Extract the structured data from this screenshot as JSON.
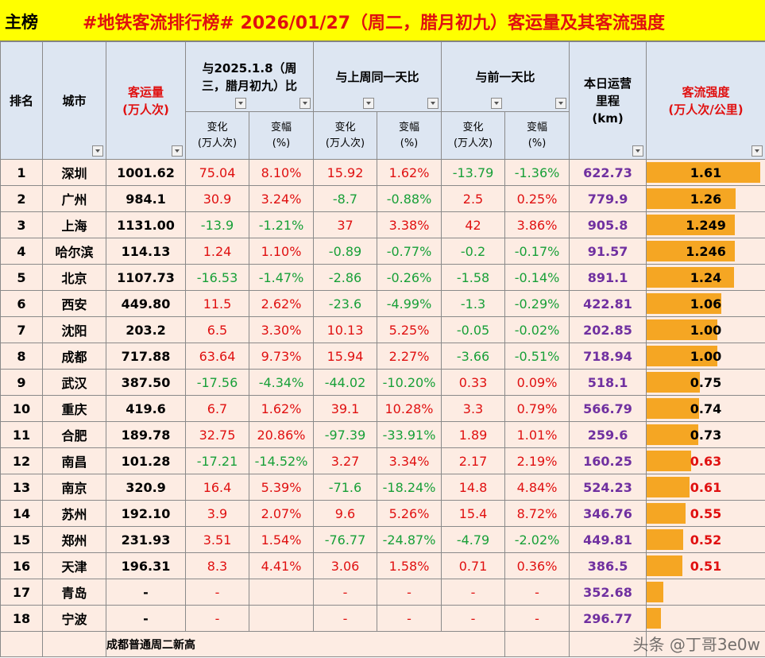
{
  "header": {
    "label": "主榜",
    "title": "#地铁客流排行榜# 2026/01/27（周二，腊月初九）客运量及其客流强度"
  },
  "columns": {
    "rank": "排名",
    "city": "城市",
    "passengers": "客运量\n(万人次)",
    "vs_lastyear": "与2025.1.8（周三，腊月初九）比",
    "vs_lastweek": "与上周同一天比",
    "vs_prevday": "与前一天比",
    "change": "变化\n(万人次)",
    "pct": "变幅\n(%)",
    "mileage": "本日运营\n里程\n(km)",
    "intensity": "客流强度\n(万人次/公里)"
  },
  "rows": [
    {
      "rank": "1",
      "city": "深圳",
      "passengers": "1001.62",
      "ly_chg": "75.04",
      "ly_pct": "8.10%",
      "lw_chg": "15.92",
      "lw_pct": "1.62%",
      "pd_chg": "-13.79",
      "pd_pct": "-1.36%",
      "mileage": "622.73",
      "intensity": "1.61",
      "level": 1.61
    },
    {
      "rank": "2",
      "city": "广州",
      "passengers": "984.1",
      "ly_chg": "30.9",
      "ly_pct": "3.24%",
      "lw_chg": "-8.7",
      "lw_pct": "-0.88%",
      "pd_chg": "2.5",
      "pd_pct": "0.25%",
      "mileage": "779.9",
      "intensity": "1.26",
      "level": 1.26
    },
    {
      "rank": "3",
      "city": "上海",
      "passengers": "1131.00",
      "ly_chg": "-13.9",
      "ly_pct": "-1.21%",
      "lw_chg": "37",
      "lw_pct": "3.38%",
      "pd_chg": "42",
      "pd_pct": "3.86%",
      "mileage": "905.8",
      "intensity": "1.249",
      "level": 1.249
    },
    {
      "rank": "4",
      "city": "哈尔滨",
      "passengers": "114.13",
      "ly_chg": "1.24",
      "ly_pct": "1.10%",
      "lw_chg": "-0.89",
      "lw_pct": "-0.77%",
      "pd_chg": "-0.2",
      "pd_pct": "-0.17%",
      "mileage": "91.57",
      "intensity": "1.246",
      "level": 1.246
    },
    {
      "rank": "5",
      "city": "北京",
      "passengers": "1107.73",
      "ly_chg": "-16.53",
      "ly_pct": "-1.47%",
      "lw_chg": "-2.86",
      "lw_pct": "-0.26%",
      "pd_chg": "-1.58",
      "pd_pct": "-0.14%",
      "mileage": "891.1",
      "intensity": "1.24",
      "level": 1.24
    },
    {
      "rank": "6",
      "city": "西安",
      "passengers": "449.80",
      "ly_chg": "11.5",
      "ly_pct": "2.62%",
      "lw_chg": "-23.6",
      "lw_pct": "-4.99%",
      "pd_chg": "-1.3",
      "pd_pct": "-0.29%",
      "mileage": "422.81",
      "intensity": "1.06",
      "level": 1.06
    },
    {
      "rank": "7",
      "city": "沈阳",
      "passengers": "203.2",
      "ly_chg": "6.5",
      "ly_pct": "3.30%",
      "lw_chg": "10.13",
      "lw_pct": "5.25%",
      "pd_chg": "-0.05",
      "pd_pct": "-0.02%",
      "mileage": "202.85",
      "intensity": "1.00",
      "level": 1.0
    },
    {
      "rank": "8",
      "city": "成都",
      "passengers": "717.88",
      "ly_chg": "63.64",
      "ly_pct": "9.73%",
      "lw_chg": "15.94",
      "lw_pct": "2.27%",
      "pd_chg": "-3.66",
      "pd_pct": "-0.51%",
      "mileage": "718.94",
      "intensity": "1.00",
      "level": 1.0
    },
    {
      "rank": "9",
      "city": "武汉",
      "passengers": "387.50",
      "ly_chg": "-17.56",
      "ly_pct": "-4.34%",
      "lw_chg": "-44.02",
      "lw_pct": "-10.20%",
      "pd_chg": "0.33",
      "pd_pct": "0.09%",
      "mileage": "518.1",
      "intensity": "0.75",
      "level": 0.75
    },
    {
      "rank": "10",
      "city": "重庆",
      "passengers": "419.6",
      "ly_chg": "6.7",
      "ly_pct": "1.62%",
      "lw_chg": "39.1",
      "lw_pct": "10.28%",
      "pd_chg": "3.3",
      "pd_pct": "0.79%",
      "mileage": "566.79",
      "intensity": "0.74",
      "level": 0.74
    },
    {
      "rank": "11",
      "city": "合肥",
      "passengers": "189.78",
      "ly_chg": "32.75",
      "ly_pct": "20.86%",
      "lw_chg": "-97.39",
      "lw_pct": "-33.91%",
      "pd_chg": "1.89",
      "pd_pct": "1.01%",
      "mileage": "259.6",
      "intensity": "0.73",
      "level": 0.73
    },
    {
      "rank": "12",
      "city": "南昌",
      "passengers": "101.28",
      "ly_chg": "-17.21",
      "ly_pct": "-14.52%",
      "lw_chg": "3.27",
      "lw_pct": "3.34%",
      "pd_chg": "2.17",
      "pd_pct": "2.19%",
      "mileage": "160.25",
      "intensity": "0.63",
      "level": 0.63
    },
    {
      "rank": "13",
      "city": "南京",
      "passengers": "320.9",
      "ly_chg": "16.4",
      "ly_pct": "5.39%",
      "lw_chg": "-71.6",
      "lw_pct": "-18.24%",
      "pd_chg": "14.8",
      "pd_pct": "4.84%",
      "mileage": "524.23",
      "intensity": "0.61",
      "level": 0.61
    },
    {
      "rank": "14",
      "city": "苏州",
      "passengers": "192.10",
      "ly_chg": "3.9",
      "ly_pct": "2.07%",
      "lw_chg": "9.6",
      "lw_pct": "5.26%",
      "pd_chg": "15.4",
      "pd_pct": "8.72%",
      "mileage": "346.76",
      "intensity": "0.55",
      "level": 0.55
    },
    {
      "rank": "15",
      "city": "郑州",
      "passengers": "231.93",
      "ly_chg": "3.51",
      "ly_pct": "1.54%",
      "lw_chg": "-76.77",
      "lw_pct": "-24.87%",
      "pd_chg": "-4.79",
      "pd_pct": "-2.02%",
      "mileage": "449.81",
      "intensity": "0.52",
      "level": 0.52
    },
    {
      "rank": "16",
      "city": "天津",
      "passengers": "196.31",
      "ly_chg": "8.3",
      "ly_pct": "4.41%",
      "lw_chg": "3.06",
      "lw_pct": "1.58%",
      "pd_chg": "0.71",
      "pd_pct": "0.36%",
      "mileage": "386.5",
      "intensity": "0.51",
      "level": 0.51
    },
    {
      "rank": "17",
      "city": "青岛",
      "passengers": "-",
      "ly_chg": "-",
      "ly_pct": "",
      "lw_chg": "-",
      "lw_pct": "-",
      "pd_chg": "-",
      "pd_pct": "-",
      "mileage": "352.68",
      "intensity": "",
      "level": 0.24
    },
    {
      "rank": "18",
      "city": "宁波",
      "passengers": "-",
      "ly_chg": "-",
      "ly_pct": "",
      "lw_chg": "-",
      "lw_pct": "-",
      "pd_chg": "-",
      "pd_pct": "-",
      "mileage": "296.77",
      "intensity": "",
      "level": 0.2
    }
  ],
  "note": "成都普通周二新高",
  "watermark": "头条 @丁哥3e0w",
  "colors": {
    "title_bg": "#ffff00",
    "header_bg": "#dde6f2",
    "row_bg": "#fdece3",
    "bar": "#f5a623",
    "positive": "#e01010",
    "negative": "#18a038",
    "mileage": "#7030a0"
  }
}
